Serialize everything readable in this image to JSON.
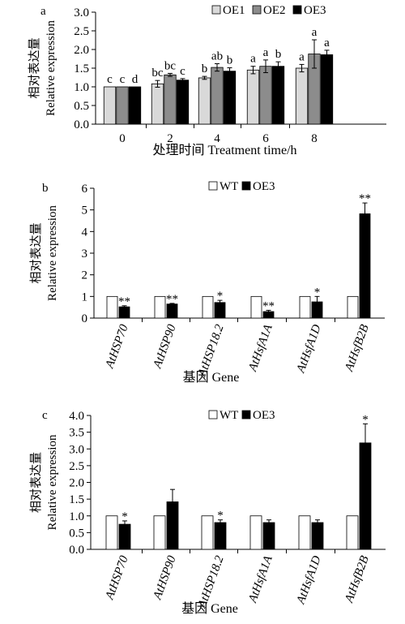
{
  "chart_data": [
    {
      "panel_label": "a",
      "type": "bar",
      "categories": [
        "0",
        "2",
        "4",
        "6",
        "8"
      ],
      "series": [
        {
          "name": "OE1",
          "color": "#d9d9d9",
          "values": [
            1.0,
            1.08,
            1.24,
            1.45,
            1.5
          ],
          "errors": [
            0.0,
            0.09,
            0.04,
            0.1,
            0.1
          ],
          "letters": [
            "c",
            "bc",
            "b",
            "a",
            "a"
          ]
        },
        {
          "name": "OE2",
          "color": "#8c8c8c",
          "values": [
            1.0,
            1.32,
            1.52,
            1.55,
            1.88
          ],
          "errors": [
            0.0,
            0.04,
            0.1,
            0.17,
            0.38
          ],
          "letters": [
            "c",
            "bc",
            "ab",
            "a",
            "a"
          ]
        },
        {
          "name": "OE3",
          "color": "#000000",
          "values": [
            1.0,
            1.18,
            1.42,
            1.55,
            1.86
          ],
          "errors": [
            0.0,
            0.04,
            0.09,
            0.12,
            0.12
          ],
          "letters": [
            "d",
            "c",
            "b",
            "b",
            "a"
          ]
        }
      ],
      "y_ticks": [
        "0.0",
        "0.5",
        "1.0",
        "1.5",
        "2.0",
        "2.5",
        "3.0"
      ],
      "ylim": [
        0,
        3
      ],
      "ylabel_cn": "相对表达量",
      "ylabel_en": "Relative expression",
      "xlabel": "处理时间 Treatment time/h",
      "legend_position": "top-right",
      "grid": false
    },
    {
      "panel_label": "b",
      "type": "bar",
      "categories": [
        "AtHSP70",
        "AtHSP90",
        "AtHSP18.2",
        "AtHsfA1A",
        "AtHsfA1D",
        "AtHsfB2B"
      ],
      "series": [
        {
          "name": "WT",
          "color": "#ffffff",
          "values": [
            1.0,
            1.0,
            1.0,
            1.0,
            1.0,
            1.0
          ],
          "errors": [
            0,
            0,
            0,
            0,
            0,
            0
          ],
          "marks": [
            "",
            "",
            "",
            "",
            "",
            ""
          ]
        },
        {
          "name": "OE3",
          "color": "#000000",
          "values": [
            0.52,
            0.65,
            0.72,
            0.3,
            0.75,
            4.82
          ],
          "errors": [
            0.05,
            0.03,
            0.1,
            0.06,
            0.25,
            0.5
          ],
          "marks": [
            "**",
            "**",
            "*",
            "**",
            "*",
            "**"
          ]
        }
      ],
      "y_ticks": [
        "0",
        "1",
        "2",
        "3",
        "4",
        "5",
        "6"
      ],
      "ylim": [
        0,
        6
      ],
      "ylabel_cn": "相对表达量",
      "ylabel_en": "Relative expression",
      "xlabel": "基因 Gene",
      "legend_position": "top-center",
      "grid": false
    },
    {
      "panel_label": "c",
      "type": "bar",
      "categories": [
        "AtHSP70",
        "AtHSP90",
        "AtHSP18.2",
        "AtHsfA1A",
        "AtHsfA1D",
        "AtHsfB2B"
      ],
      "series": [
        {
          "name": "WT",
          "color": "#ffffff",
          "values": [
            1.0,
            1.0,
            1.0,
            1.0,
            1.0,
            1.0
          ],
          "errors": [
            0,
            0,
            0,
            0,
            0,
            0
          ],
          "marks": [
            "",
            "",
            "",
            "",
            "",
            ""
          ]
        },
        {
          "name": "OE3",
          "color": "#000000",
          "values": [
            0.75,
            1.42,
            0.8,
            0.8,
            0.8,
            3.18
          ],
          "errors": [
            0.1,
            0.37,
            0.08,
            0.08,
            0.08,
            0.57
          ],
          "marks": [
            "*",
            "",
            "*",
            "",
            "",
            "*"
          ]
        }
      ],
      "y_ticks": [
        "0.0",
        "0.5",
        "1.0",
        "1.5",
        "2.0",
        "2.5",
        "3.0",
        "3.5",
        "4.0"
      ],
      "ylim": [
        0,
        4
      ],
      "ylabel_cn": "相对表达量",
      "ylabel_en": "Relative expression",
      "xlabel": "基因 Gene",
      "legend_position": "top-center",
      "grid": false
    }
  ]
}
